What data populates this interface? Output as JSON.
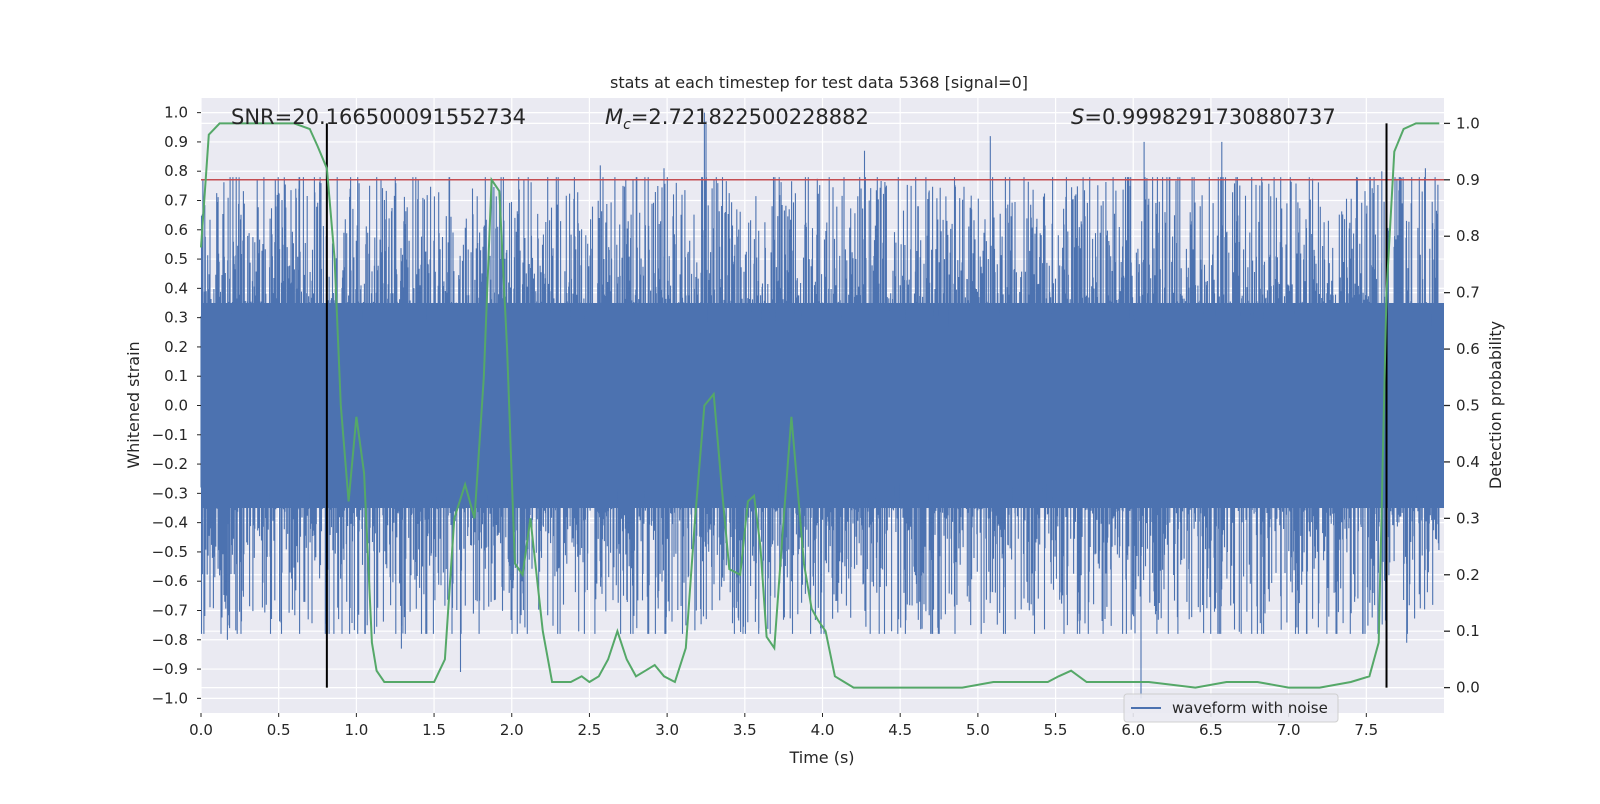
{
  "chart_data": {
    "type": "line",
    "title": "stats at each timestep for test data 5368 [signal=0]",
    "xlabel": "Time (s)",
    "ylabel": "Whitened strain",
    "y2label": "Detection probability",
    "xlim": [
      0.0,
      8.0
    ],
    "ylim": [
      -1.05,
      1.05
    ],
    "y2lim": [
      -0.045,
      1.045
    ],
    "x_ticks": [
      "0.0",
      "0.5",
      "1.0",
      "1.5",
      "2.0",
      "2.5",
      "3.0",
      "3.5",
      "4.0",
      "4.5",
      "5.0",
      "5.5",
      "6.0",
      "6.5",
      "7.0",
      "7.5"
    ],
    "y_ticks": [
      "1.0",
      "0.9",
      "0.8",
      "0.7",
      "0.6",
      "0.5",
      "0.4",
      "0.3",
      "0.2",
      "0.1",
      "0.0",
      "−0.1",
      "−0.2",
      "−0.3",
      "−0.4",
      "−0.5",
      "−0.6",
      "−0.7",
      "−0.8",
      "−0.9",
      "−1.0"
    ],
    "y2_ticks": [
      "1.0",
      "0.9",
      "0.8",
      "0.7",
      "0.6",
      "0.5",
      "0.4",
      "0.3",
      "0.2",
      "0.1",
      "0.0"
    ],
    "grid": true,
    "background": "#eaeaf2",
    "legend": {
      "placement": "lower-right",
      "entries": [
        "waveform with noise"
      ]
    },
    "annotations": {
      "snr": "SNR=20.166500091552734",
      "mc_symbol": "M",
      "mc_sub": "c",
      "mc_value": "=2.721822500228882",
      "s_symbol": "S",
      "s_value": "=0.9998291730880737"
    },
    "threshold_line": {
      "y2": 0.9,
      "color": "#c44e52"
    },
    "vertical_markers": {
      "x": [
        0.81,
        7.63
      ],
      "y2_range": [
        0.0,
        1.0
      ],
      "color": "#000000"
    },
    "waveform": {
      "name": "waveform with noise",
      "color": "#4c72b0",
      "core_band": [
        -0.35,
        0.35
      ],
      "typical_range": [
        -0.55,
        0.55
      ],
      "peaks": [
        {
          "t": 3.24,
          "v": 1.0
        },
        {
          "t": 3.25,
          "v": 0.97
        },
        {
          "t": 6.07,
          "v": 0.9
        },
        {
          "t": 5.08,
          "v": 0.92
        },
        {
          "t": 6.57,
          "v": 0.9
        },
        {
          "t": 4.27,
          "v": 0.87
        },
        {
          "t": 2.57,
          "v": 0.82
        },
        {
          "t": 2.98,
          "v": 0.81
        },
        {
          "t": 4.6,
          "v": 0.78
        },
        {
          "t": 7.88,
          "v": 0.81
        },
        {
          "t": 0.63,
          "v": 0.74
        },
        {
          "t": 7.6,
          "v": 0.8
        },
        {
          "t": 6.05,
          "v": -1.0
        },
        {
          "t": 1.67,
          "v": -0.91
        },
        {
          "t": 0.17,
          "v": -0.8
        },
        {
          "t": 1.29,
          "v": -0.83
        },
        {
          "t": 3.59,
          "v": -0.76
        },
        {
          "t": 7.76,
          "v": -0.81
        },
        {
          "t": 4.49,
          "v": -0.73
        },
        {
          "t": 5.24,
          "v": -0.73
        },
        {
          "t": 6.36,
          "v": -0.73
        }
      ]
    },
    "probability": {
      "name": "detection probability",
      "color": "#55a868",
      "x": [
        0.0,
        0.05,
        0.12,
        0.2,
        0.3,
        0.45,
        0.6,
        0.7,
        0.75,
        0.81,
        0.86,
        0.9,
        0.95,
        1.0,
        1.05,
        1.1,
        1.13,
        1.18,
        1.3,
        1.4,
        1.5,
        1.57,
        1.63,
        1.7,
        1.76,
        1.82,
        1.87,
        1.92,
        1.97,
        2.02,
        2.07,
        2.12,
        2.2,
        2.26,
        2.32,
        2.38,
        2.45,
        2.5,
        2.56,
        2.62,
        2.68,
        2.74,
        2.8,
        2.86,
        2.92,
        2.98,
        3.05,
        3.12,
        3.18,
        3.24,
        3.3,
        3.35,
        3.4,
        3.47,
        3.52,
        3.56,
        3.6,
        3.64,
        3.69,
        3.75,
        3.8,
        3.85,
        3.88,
        3.93,
        3.97,
        4.02,
        4.08,
        4.14,
        4.2,
        4.27,
        4.4,
        4.6,
        4.9,
        5.1,
        5.25,
        5.35,
        5.45,
        5.52,
        5.6,
        5.7,
        5.9,
        6.1,
        6.4,
        6.6,
        6.8,
        7.0,
        7.2,
        7.4,
        7.52,
        7.58,
        7.63,
        7.68,
        7.74,
        7.82,
        7.9,
        7.97
      ],
      "y": [
        0.78,
        0.98,
        1.0,
        1.0,
        1.0,
        1.0,
        1.0,
        0.99,
        0.96,
        0.92,
        0.76,
        0.5,
        0.33,
        0.48,
        0.38,
        0.08,
        0.03,
        0.01,
        0.01,
        0.01,
        0.01,
        0.05,
        0.3,
        0.36,
        0.3,
        0.55,
        0.9,
        0.88,
        0.6,
        0.22,
        0.2,
        0.3,
        0.1,
        0.01,
        0.01,
        0.01,
        0.02,
        0.01,
        0.02,
        0.05,
        0.1,
        0.05,
        0.02,
        0.03,
        0.04,
        0.02,
        0.01,
        0.07,
        0.3,
        0.5,
        0.52,
        0.36,
        0.21,
        0.2,
        0.33,
        0.34,
        0.25,
        0.09,
        0.07,
        0.3,
        0.48,
        0.32,
        0.22,
        0.14,
        0.12,
        0.1,
        0.02,
        0.01,
        0.0,
        0.0,
        0.0,
        0.0,
        0.0,
        0.01,
        0.01,
        0.01,
        0.01,
        0.02,
        0.03,
        0.01,
        0.01,
        0.01,
        0.0,
        0.01,
        0.01,
        0.0,
        0.0,
        0.01,
        0.02,
        0.08,
        0.7,
        0.95,
        0.99,
        1.0,
        1.0,
        1.0
      ]
    }
  }
}
